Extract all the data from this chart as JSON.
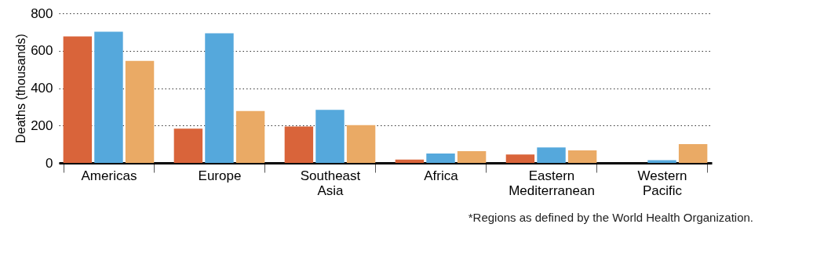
{
  "chart_data": {
    "type": "bar",
    "ylabel": "Deaths (thousands)",
    "categories": [
      "Americas",
      "Europe",
      "Southeast Asia",
      "Africa",
      "Eastern Mediterranean",
      "Western Pacific"
    ],
    "series": [
      {
        "color": "#d9643a",
        "values": [
          676,
          183,
          195,
          18,
          45,
          0
        ]
      },
      {
        "color": "#55a8dc",
        "values": [
          702,
          693,
          284,
          50,
          83,
          15
        ]
      },
      {
        "color": "#eaaa65",
        "values": [
          546,
          277,
          202,
          63,
          67,
          101
        ]
      }
    ],
    "ylim": [
      0,
      800
    ],
    "yticks": [
      0,
      200,
      400,
      600,
      800
    ],
    "grid": "y",
    "legend": false,
    "annotations": [
      "*Regions as defined by the World Health Organization."
    ]
  }
}
